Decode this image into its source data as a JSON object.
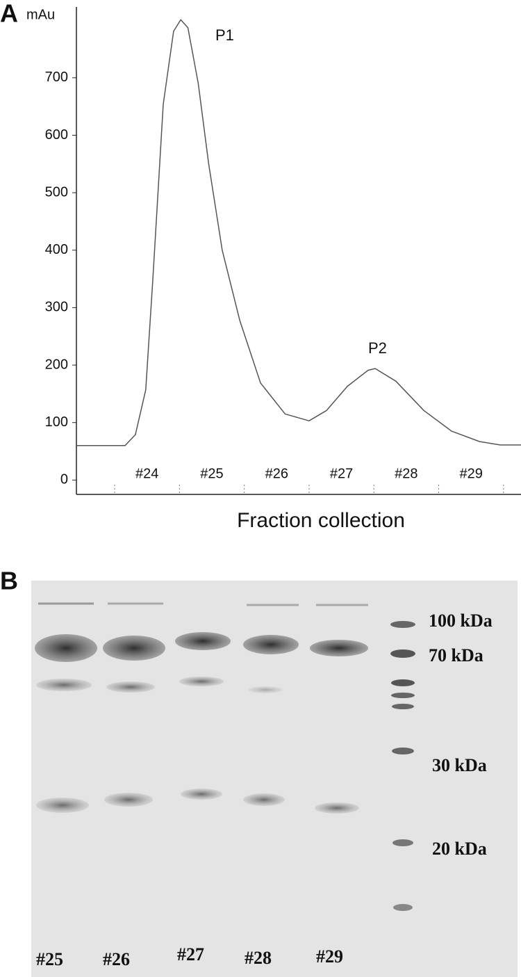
{
  "chart_data": {
    "type": "line",
    "panel_label": "A",
    "y_unit": "mAu",
    "xlabel": "Fraction collection",
    "x": [
      23.41,
      24.16,
      24.32,
      24.48,
      24.59,
      24.75,
      24.91,
      25.02,
      25.13,
      25.29,
      25.45,
      25.66,
      25.93,
      26.25,
      26.63,
      27.0,
      27.27,
      27.59,
      27.91,
      28.02,
      28.34,
      28.77,
      29.2,
      29.63,
      29.95,
      30.27
    ],
    "values": [
      60,
      60,
      79,
      157,
      351,
      654,
      781,
      801,
      787,
      690,
      551,
      400,
      278,
      169,
      115,
      103,
      121,
      163,
      191,
      194,
      172,
      121,
      85,
      67,
      61,
      61
    ],
    "color": "#555555",
    "xlim": [
      23.41,
      30.27
    ],
    "xticks": [
      24,
      25,
      26,
      27,
      28,
      29,
      30
    ],
    "categories": [
      "#24",
      "#25",
      "#26",
      "#27",
      "#28",
      "#29"
    ],
    "ylim": [
      -25,
      830
    ],
    "yticks": [
      0,
      100,
      200,
      300,
      400,
      500,
      600,
      700
    ],
    "grid": false,
    "annotations": [
      "P1",
      "P2"
    ]
  },
  "gel": {
    "panel_label": "B",
    "markers": [
      "100 kDa",
      "70 kDa",
      "30 kDa",
      "20 kDa"
    ],
    "lanes": [
      "#25",
      "#26",
      "#27",
      "#28",
      "#29"
    ]
  }
}
